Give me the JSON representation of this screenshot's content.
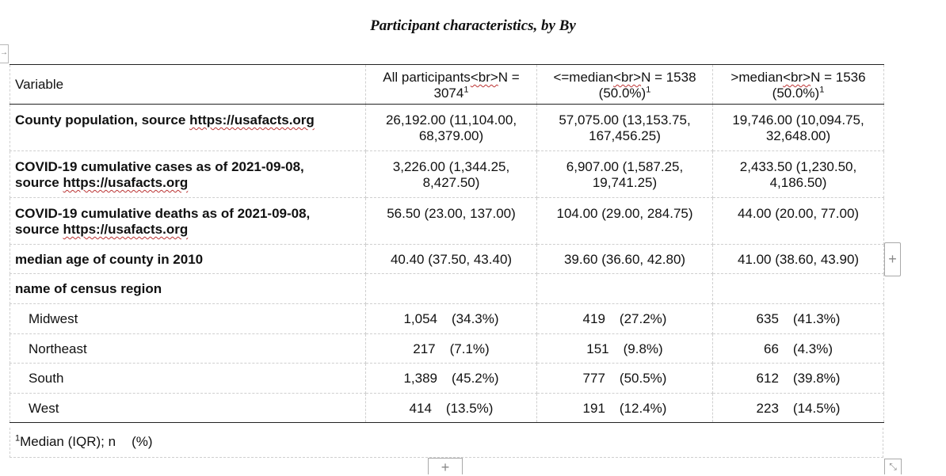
{
  "caption": "Participant characteristics, by By",
  "header": {
    "variable": "Variable",
    "all": {
      "line1_pre": "All participants",
      "line1_br": "<br>",
      "line1_post": "N =",
      "line2": "3074",
      "sup": "1"
    },
    "low": {
      "line1_pre": "<=median",
      "line1_br": "<br>",
      "line1_post": "N = 1538",
      "line2": "(50.0%)",
      "sup": "1"
    },
    "high": {
      "line1_pre": ">median",
      "line1_br": "<br>",
      "line1_post": "N = 1536",
      "line2": "(50.0%)",
      "sup": "1"
    }
  },
  "rows": {
    "pop": {
      "label_pre": "County population, source ",
      "label_url": "https://usafacts.org",
      "all": [
        "26,192.00 (11,104.00,",
        "68,379.00)"
      ],
      "low": [
        "57,075.00 (13,153.75,",
        "167,456.25)"
      ],
      "high": [
        "19,746.00 (10,094.75,",
        "32,648.00)"
      ]
    },
    "cases": {
      "label_line1": "COVID-19 cumulative cases as of 2021-09-08,",
      "label_pre": "source ",
      "label_url": "https://usafacts.org",
      "all": [
        "3,226.00 (1,344.25,",
        "8,427.50)"
      ],
      "low": [
        "6,907.00 (1,587.25,",
        "19,741.25)"
      ],
      "high": [
        "2,433.50 (1,230.50,",
        "4,186.50)"
      ]
    },
    "deaths": {
      "label_line1": "COVID-19 cumulative deaths as of 2021-09-08,",
      "label_pre": "source ",
      "label_url": "https://usafacts.org",
      "all": "56.50 (23.00, 137.00)",
      "low": "104.00 (29.00, 284.75)",
      "high": "44.00 (20.00, 77.00)"
    },
    "age": {
      "label": "median age of county in 2010",
      "all": "40.40 (37.50, 43.40)",
      "low": "39.60 (36.60, 42.80)",
      "high": "41.00 (38.60, 43.90)"
    },
    "region": {
      "label": "name of census region"
    },
    "regions": [
      {
        "label": "Midwest",
        "all_n": "1,054",
        "all_p": "(34.3%)",
        "low_n": "419",
        "low_p": "(27.2%)",
        "high_n": "635",
        "high_p": "(41.3%)"
      },
      {
        "label": "Northeast",
        "all_n": "217",
        "all_p": "(7.1%)",
        "low_n": "151",
        "low_p": "(9.8%)",
        "high_n": "66",
        "high_p": "(4.3%)"
      },
      {
        "label": "South",
        "all_n": "1,389",
        "all_p": "(45.2%)",
        "low_n": "777",
        "low_p": "(50.5%)",
        "high_n": "612",
        "high_p": "(39.8%)"
      },
      {
        "label": "West",
        "all_n": "414",
        "all_p": "(13.5%)",
        "low_n": "191",
        "low_p": "(12.4%)",
        "high_n": "223",
        "high_p": "(14.5%)"
      }
    ]
  },
  "footnote": {
    "sup": "1",
    "text": "Median (IQR); n",
    "pct": "(%)"
  },
  "controls": {
    "add_column": "+",
    "add_row": "+",
    "resize": "⤡",
    "side_arrow": "→"
  }
}
